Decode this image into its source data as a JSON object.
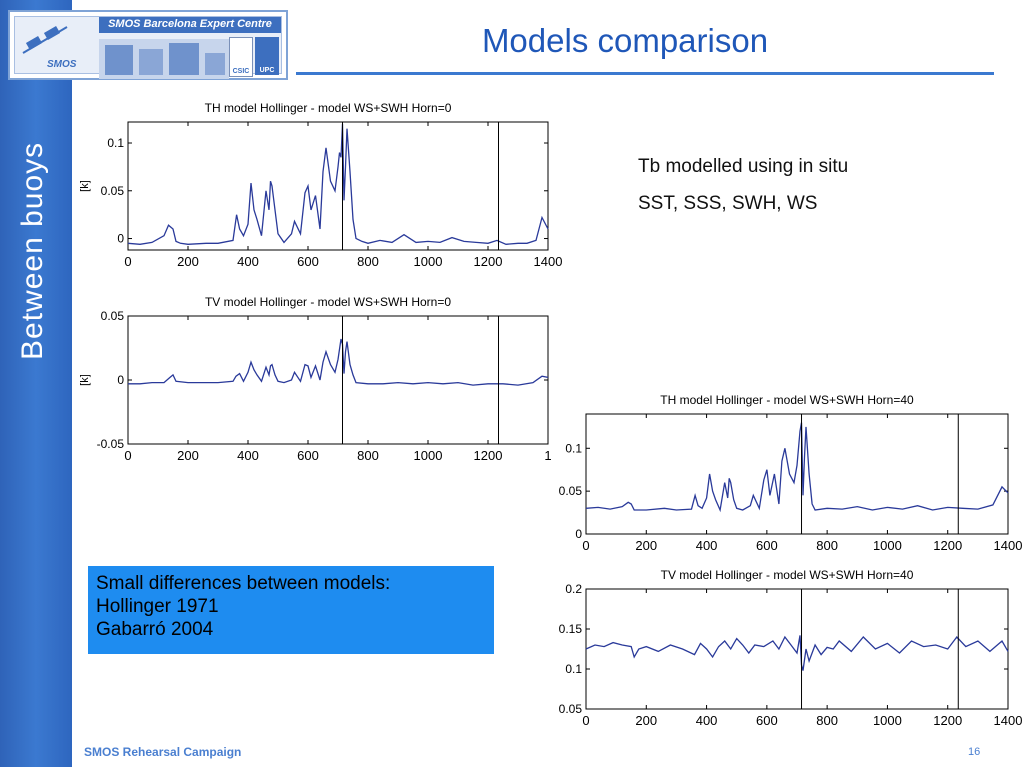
{
  "slide": {
    "title": "Models comparison",
    "side_label": "Between  buoys",
    "logo_text": "SMOS Barcelona Expert Centre",
    "logo_marks": [
      "SMOS",
      "CSIC",
      "UPC"
    ],
    "note_lines": [
      "Tb modelled using in situ",
      "SST, SSS, SWH, WS"
    ],
    "box_lines": [
      "Small differences between models:",
      "Hollinger 1971",
      "Gabarró 2004"
    ],
    "footer": "SMOS Rehearsal Campaign",
    "page_number": "16",
    "colors": {
      "accent": "#3b79d0",
      "title": "#1f57b8",
      "box": "#1e8cf0",
      "line": "#2a3a9a"
    }
  },
  "chart_data": [
    {
      "type": "line",
      "title": "TH model Hollinger  - model WS+SWH    Horn=0",
      "xlabel": "",
      "ylabel": "[k]",
      "xlim": [
        0,
        1400
      ],
      "ylim": [
        -0.012,
        0.122
      ],
      "xticks": [
        "0",
        "200",
        "400",
        "600",
        "800",
        "1000",
        "1200",
        "1400"
      ],
      "yticks": [
        {
          "v": 0.1,
          "label": "0.1"
        },
        {
          "v": 0.05,
          "label": "0.05"
        },
        {
          "v": 0,
          "label": "0"
        }
      ],
      "vlines": [
        715,
        1235
      ],
      "series": [
        {
          "x": [
            0,
            40,
            80,
            120,
            135,
            150,
            160,
            175,
            200,
            260,
            300,
            350,
            362,
            372,
            385,
            400,
            410,
            420,
            430,
            445,
            460,
            470,
            475,
            480,
            490,
            500,
            520,
            545,
            555,
            575,
            590,
            600,
            610,
            625,
            640,
            650,
            660,
            675,
            690,
            700,
            705,
            710,
            715,
            720,
            725,
            730,
            740,
            750,
            760,
            780,
            800,
            840,
            880,
            920,
            960,
            1000,
            1040,
            1080,
            1120,
            1160,
            1200,
            1230,
            1260,
            1300,
            1330,
            1360,
            1380,
            1400
          ],
          "y": [
            -0.005,
            -0.006,
            -0.004,
            0.003,
            0.014,
            0.01,
            -0.003,
            -0.005,
            -0.006,
            -0.005,
            -0.005,
            -0.002,
            0.025,
            0.01,
            0.003,
            0.015,
            0.058,
            0.03,
            0.02,
            0.003,
            0.05,
            0.03,
            0.06,
            0.055,
            0.03,
            0.005,
            -0.004,
            0.005,
            0.018,
            0.005,
            0.048,
            0.055,
            0.03,
            0.045,
            0.01,
            0.07,
            0.095,
            0.06,
            0.05,
            0.075,
            0.09,
            0.085,
            0.12,
            0.04,
            0.075,
            0.115,
            0.07,
            0.02,
            0,
            -0.003,
            -0.005,
            -0.002,
            -0.004,
            0.004,
            -0.004,
            -0.003,
            -0.004,
            0.001,
            -0.003,
            -0.004,
            -0.005,
            -0.002,
            -0.006,
            -0.005,
            -0.005,
            -0.002,
            0.022,
            0.01
          ]
        }
      ]
    },
    {
      "type": "line",
      "title": "TV  model Hollinger - model WS+SWH    Horn=0",
      "xlabel": "",
      "ylabel": "[k]",
      "xlim": [
        0,
        1400
      ],
      "ylim": [
        -0.05,
        0.05
      ],
      "xticks": [
        "0",
        "200",
        "400",
        "600",
        "800",
        "1000",
        "1200",
        "1"
      ],
      "yticks": [
        {
          "v": 0.05,
          "label": "0.05"
        },
        {
          "v": 0,
          "label": "0"
        },
        {
          "v": -0.05,
          "label": "-0.05"
        }
      ],
      "vlines": [
        715,
        1235
      ],
      "series": [
        {
          "x": [
            0,
            40,
            80,
            120,
            140,
            150,
            160,
            200,
            260,
            300,
            350,
            360,
            372,
            385,
            400,
            410,
            420,
            430,
            445,
            460,
            470,
            475,
            480,
            490,
            500,
            520,
            545,
            555,
            575,
            590,
            600,
            610,
            625,
            640,
            650,
            660,
            675,
            690,
            700,
            710,
            715,
            720,
            725,
            730,
            740,
            750,
            760,
            800,
            850,
            900,
            950,
            1000,
            1050,
            1100,
            1150,
            1200,
            1250,
            1300,
            1350,
            1380,
            1400
          ],
          "y": [
            -0.003,
            -0.003,
            -0.002,
            -0.002,
            0.002,
            0.004,
            -0.001,
            -0.002,
            -0.002,
            -0.002,
            -0.001,
            0.003,
            0.005,
            -0.001,
            0.006,
            0.014,
            0.008,
            0.004,
            -0.001,
            0.01,
            0.004,
            0.011,
            0.012,
            0.004,
            -0.001,
            -0.002,
            0,
            0.006,
            -0.001,
            0.012,
            0.011,
            0.002,
            0.011,
            0,
            0.014,
            0.022,
            0.012,
            0.006,
            0.016,
            0.032,
            0.028,
            0.005,
            0.022,
            0.03,
            0.012,
            0.004,
            -0.002,
            -0.003,
            -0.003,
            -0.002,
            -0.003,
            -0.002,
            -0.003,
            -0.002,
            -0.004,
            -0.003,
            -0.003,
            -0.004,
            -0.002,
            0.003,
            0.002
          ]
        }
      ]
    },
    {
      "type": "line",
      "title": "TH model Hollinger  - model WS+SWH    Horn=40",
      "xlabel": "",
      "ylabel": "",
      "xlim": [
        0,
        1400
      ],
      "ylim": [
        0,
        0.14
      ],
      "xticks": [
        "0",
        "200",
        "400",
        "600",
        "800",
        "1000",
        "1200",
        "1400"
      ],
      "yticks": [
        {
          "v": 0.1,
          "label": "0.1"
        },
        {
          "v": 0.05,
          "label": "0.05"
        },
        {
          "v": 0,
          "label": "0"
        }
      ],
      "vlines": [
        715,
        1235
      ],
      "series": [
        {
          "x": [
            0,
            40,
            80,
            120,
            140,
            150,
            160,
            200,
            260,
            300,
            350,
            362,
            372,
            385,
            400,
            410,
            420,
            430,
            445,
            460,
            470,
            475,
            480,
            490,
            500,
            520,
            545,
            555,
            575,
            590,
            600,
            610,
            625,
            640,
            650,
            660,
            675,
            690,
            700,
            710,
            715,
            720,
            725,
            730,
            740,
            750,
            760,
            800,
            850,
            900,
            950,
            1000,
            1050,
            1100,
            1150,
            1200,
            1250,
            1300,
            1350,
            1380,
            1400
          ],
          "y": [
            0.03,
            0.031,
            0.029,
            0.032,
            0.037,
            0.035,
            0.028,
            0.028,
            0.03,
            0.028,
            0.029,
            0.045,
            0.033,
            0.03,
            0.042,
            0.07,
            0.05,
            0.04,
            0.028,
            0.06,
            0.042,
            0.065,
            0.06,
            0.04,
            0.03,
            0.028,
            0.033,
            0.045,
            0.03,
            0.063,
            0.075,
            0.045,
            0.07,
            0.035,
            0.085,
            0.1,
            0.07,
            0.06,
            0.08,
            0.12,
            0.13,
            0.045,
            0.09,
            0.125,
            0.07,
            0.035,
            0.028,
            0.03,
            0.029,
            0.032,
            0.028,
            0.031,
            0.029,
            0.033,
            0.028,
            0.031,
            0.03,
            0.029,
            0.034,
            0.055,
            0.048
          ]
        }
      ]
    },
    {
      "type": "line",
      "title": "TV  model Hollinger - model WS+SWH   Horn=40",
      "xlabel": "",
      "ylabel": "",
      "xlim": [
        0,
        1400
      ],
      "ylim": [
        0.05,
        0.2
      ],
      "xticks": [
        "0",
        "200",
        "400",
        "600",
        "800",
        "1000",
        "1200",
        "1400"
      ],
      "yticks": [
        {
          "v": 0.2,
          "label": "0.2"
        },
        {
          "v": 0.15,
          "label": "0.15"
        },
        {
          "v": 0.1,
          "label": "0.1"
        },
        {
          "v": 0.05,
          "label": "0.05"
        }
      ],
      "vlines": [
        715,
        1235
      ],
      "series": [
        {
          "x": [
            0,
            30,
            60,
            90,
            120,
            150,
            160,
            175,
            200,
            240,
            280,
            320,
            360,
            380,
            400,
            420,
            440,
            460,
            480,
            500,
            520,
            540,
            560,
            590,
            620,
            640,
            660,
            680,
            700,
            710,
            715,
            720,
            730,
            740,
            750,
            760,
            780,
            800,
            820,
            840,
            880,
            920,
            960,
            1000,
            1040,
            1080,
            1120,
            1160,
            1200,
            1230,
            1260,
            1300,
            1340,
            1380,
            1400
          ],
          "y": [
            0.125,
            0.13,
            0.128,
            0.133,
            0.13,
            0.128,
            0.115,
            0.125,
            0.128,
            0.122,
            0.13,
            0.125,
            0.118,
            0.132,
            0.125,
            0.115,
            0.128,
            0.135,
            0.125,
            0.138,
            0.13,
            0.12,
            0.13,
            0.128,
            0.135,
            0.125,
            0.14,
            0.13,
            0.12,
            0.142,
            0.105,
            0.098,
            0.125,
            0.11,
            0.12,
            0.13,
            0.118,
            0.127,
            0.125,
            0.135,
            0.122,
            0.14,
            0.125,
            0.132,
            0.12,
            0.135,
            0.128,
            0.13,
            0.125,
            0.14,
            0.128,
            0.135,
            0.122,
            0.135,
            0.122
          ]
        }
      ]
    }
  ]
}
